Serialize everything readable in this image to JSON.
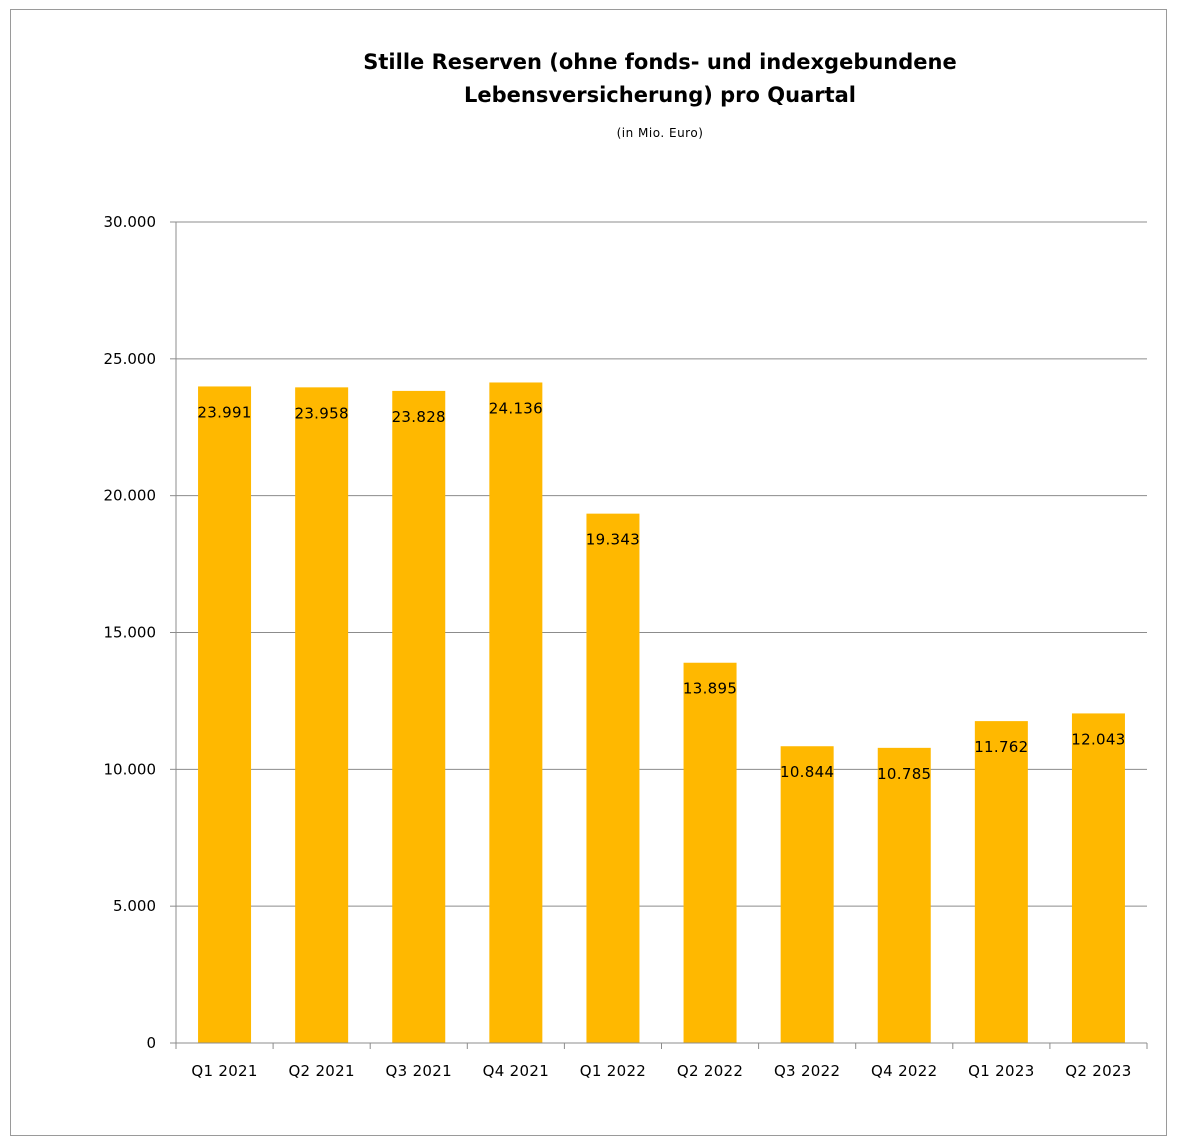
{
  "chart_data": {
    "type": "bar",
    "title_line1": "Stille Reserven (ohne fonds- und indexgebundene",
    "title_line2": "Lebensversicherung) pro Quartal",
    "subtitle": "(in Mio. Euro)",
    "categories": [
      "Q1 2021",
      "Q2 2021",
      "Q3 2021",
      "Q4 2021",
      "Q1 2022",
      "Q2 2022",
      "Q3 2022",
      "Q4 2022",
      "Q1 2023",
      "Q2 2023"
    ],
    "values": [
      23991,
      23958,
      23828,
      24136,
      19343,
      13895,
      10844,
      10785,
      11762,
      12043
    ],
    "value_labels": [
      "23.991",
      "23.958",
      "23.828",
      "24.136",
      "19.343",
      "13.895",
      "10.844",
      "10.785",
      "11.762",
      "12.043"
    ],
    "ylim": [
      0,
      30000
    ],
    "yticks": [
      0,
      5000,
      10000,
      15000,
      20000,
      25000,
      30000
    ],
    "ytick_labels": [
      "0",
      "5.000",
      "10.000",
      "15.000",
      "20.000",
      "25.000",
      "30.000"
    ],
    "xlabel": "",
    "ylabel": "",
    "grid": "horizontal",
    "legend": "none",
    "bar_color": "#ffb800",
    "grid_color": "#8c8c8c"
  }
}
